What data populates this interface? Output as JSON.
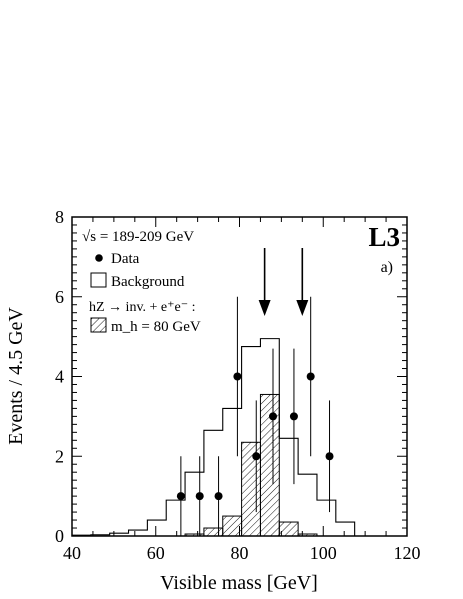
{
  "chart_data": {
    "type": "bar",
    "title": "",
    "xlabel": "Visible mass  [GeV]",
    "ylabel": "Events / 4.5 GeV",
    "xlim": [
      40,
      120
    ],
    "ylim": [
      0,
      8
    ],
    "x_ticks": [
      40,
      60,
      80,
      100,
      120
    ],
    "y_ticks": [
      0,
      2,
      4,
      6,
      8
    ],
    "energy_label": "√s = 189-209 GeV",
    "experiment_label": "L3",
    "panel_label": "a)",
    "process_label": "hZ → inv. + e⁺e⁻ :",
    "legend": [
      {
        "name": "Data",
        "marker": "filled-circle"
      },
      {
        "name": "Background",
        "marker": "open-box"
      },
      {
        "name": "m_h = 80 GeV",
        "marker": "hatched-box"
      }
    ],
    "bin_edges": [
      40,
      44.5,
      49,
      53.5,
      58,
      62.5,
      67,
      71.5,
      76,
      80.5,
      85,
      89.5,
      94,
      98.5,
      103,
      107.5,
      112,
      116.5,
      121
    ],
    "series": [
      {
        "name": "Background",
        "style": "open-histogram",
        "values": [
          0.02,
          0.03,
          0.07,
          0.15,
          0.4,
          0.9,
          1.6,
          2.65,
          3.2,
          4.75,
          4.95,
          2.45,
          1.55,
          0.9,
          0.35,
          0.0,
          0.0,
          0.0
        ]
      },
      {
        "name": "m_h = 80 GeV",
        "style": "hatched-histogram",
        "values": [
          0.0,
          0.0,
          0.0,
          0.0,
          0.0,
          0.0,
          0.05,
          0.2,
          0.5,
          2.35,
          3.55,
          0.35,
          0.05,
          0.0,
          0.0,
          0.0,
          0.0,
          0.0
        ]
      },
      {
        "name": "Data",
        "style": "points",
        "x": [
          66,
          70.5,
          75,
          79.5,
          84,
          88,
          93,
          97,
          101.5
        ],
        "y": [
          1,
          1,
          1,
          4,
          2,
          3,
          3,
          4,
          2
        ],
        "err": [
          1.0,
          1.0,
          1.0,
          2.0,
          1.4,
          1.7,
          1.7,
          2.0,
          1.4
        ]
      }
    ],
    "arrows_x": [
      86,
      95
    ],
    "grid": false
  }
}
